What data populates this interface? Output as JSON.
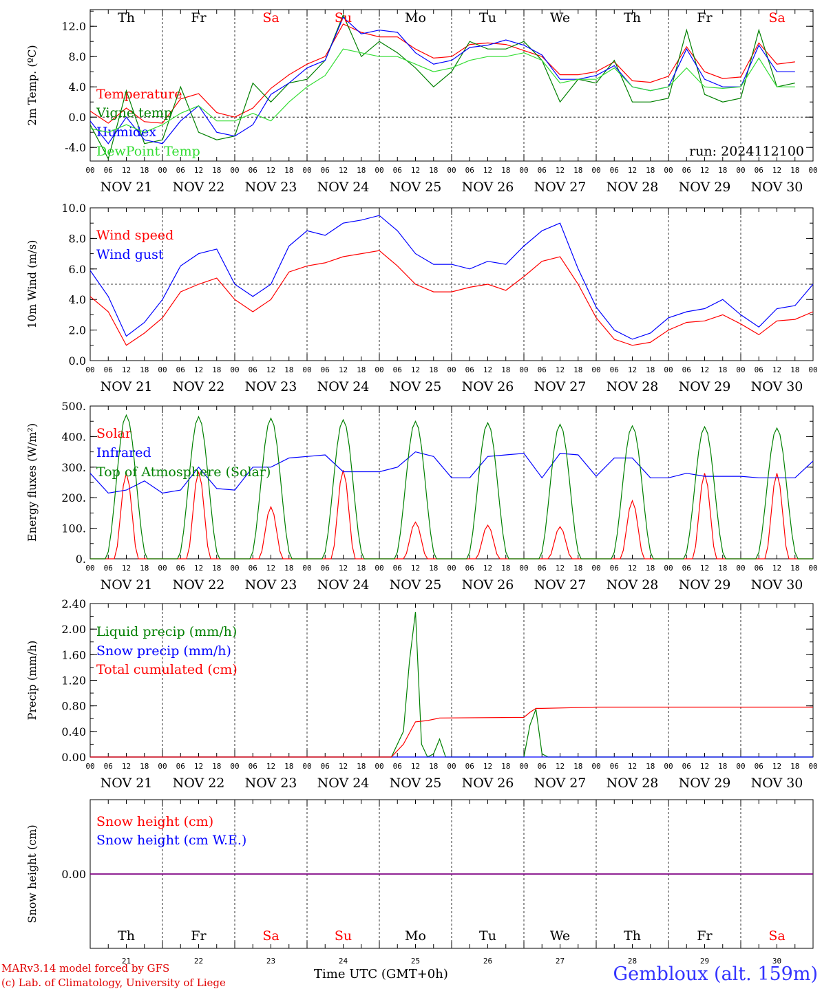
{
  "run_label": "run: 2024112100",
  "days": {
    "names": [
      "Th",
      "Fr",
      "Sa",
      "Su",
      "Mo",
      "Tu",
      "We",
      "Th",
      "Fr",
      "Sa"
    ],
    "weekend": [
      false,
      false,
      true,
      true,
      false,
      false,
      false,
      false,
      false,
      true
    ],
    "dates": [
      "NOV 21",
      "NOV 22",
      "NOV 23",
      "NOV 24",
      "NOV 25",
      "NOV 26",
      "NOV 27",
      "NOV 28",
      "NOV 29",
      "NOV 30"
    ],
    "numbers": [
      "21",
      "22",
      "23",
      "24",
      "25",
      "26",
      "27",
      "28",
      "29",
      "30"
    ]
  },
  "hour_ticks": [
    "00",
    "06",
    "12",
    "18"
  ],
  "footer": {
    "model": "MARv3.14 model forced by GFS",
    "lab": "(c) Lab. of Climatology, University of Liege",
    "xtitle": "Time UTC (GMT+0h)",
    "station": "Gembloux (alt. 159m)"
  },
  "colors": {
    "red": "#ff0000",
    "darkgreen": "#008000",
    "blue": "#0000ff",
    "lightgreen": "#33dd33",
    "purple": "#800080"
  },
  "chart_data": [
    {
      "type": "line",
      "ylabel": "2m Temp. (ºC)",
      "ylim": [
        -5.8,
        14.2
      ],
      "yticks": [
        "12.0",
        "8.0",
        "4.0",
        "0.0",
        "-4.0"
      ],
      "ytick_values": [
        12,
        8,
        4,
        0,
        -4
      ],
      "ref_line": 0,
      "x_unit": "hours since NOV 21 00 UTC",
      "series": [
        {
          "name": "Temperature",
          "color": "#ff0000",
          "x": [
            0,
            6,
            12,
            18,
            24,
            30,
            36,
            42,
            48,
            54,
            60,
            66,
            72,
            78,
            84,
            90,
            96,
            102,
            108,
            114,
            120,
            126,
            132,
            138,
            144,
            150,
            156,
            162,
            168,
            174,
            180,
            186,
            192,
            198,
            204,
            210,
            216,
            222,
            228,
            234
          ],
          "values": [
            0.8,
            -0.8,
            1.2,
            -0.6,
            -0.8,
            2.4,
            3.1,
            0.6,
            0.0,
            1.2,
            3.8,
            5.6,
            7.0,
            8.0,
            12.3,
            11.2,
            10.6,
            10.6,
            9.0,
            7.8,
            8.0,
            9.6,
            9.8,
            9.6,
            8.8,
            8.0,
            5.6,
            5.6,
            6.0,
            7.3,
            4.8,
            4.6,
            5.4,
            9.3,
            6.0,
            5.1,
            5.3,
            9.8,
            7.0,
            7.3
          ]
        },
        {
          "name": "Vigne temp",
          "color": "#008000",
          "x": [
            0,
            6,
            12,
            18,
            24,
            30,
            36,
            42,
            48,
            54,
            60,
            66,
            72,
            78,
            84,
            90,
            96,
            102,
            108,
            114,
            120,
            126,
            132,
            138,
            144,
            150,
            156,
            162,
            168,
            174,
            180,
            186,
            192,
            198,
            204,
            210,
            216,
            222,
            228,
            234
          ],
          "values": [
            -1.0,
            -5.5,
            3.5,
            -3.5,
            -3.0,
            4.0,
            -2.0,
            -3.0,
            -2.5,
            4.5,
            2.0,
            4.5,
            5.0,
            7.5,
            13.5,
            8.0,
            10.0,
            8.5,
            6.5,
            4.0,
            6.0,
            10.0,
            9.0,
            9.0,
            10.0,
            7.5,
            2.0,
            5.0,
            4.5,
            7.5,
            2.0,
            2.0,
            2.5,
            11.5,
            3.0,
            2.0,
            2.5,
            11.5,
            4.0,
            4.5
          ]
        },
        {
          "name": "Humidex",
          "color": "#0000ff",
          "x": [
            0,
            6,
            12,
            18,
            24,
            30,
            36,
            42,
            48,
            54,
            60,
            66,
            72,
            78,
            84,
            90,
            96,
            102,
            108,
            114,
            120,
            126,
            132,
            138,
            144,
            150,
            156,
            162,
            168,
            174,
            180,
            186,
            192,
            198,
            204,
            210,
            216,
            222,
            228,
            234
          ],
          "values": [
            -0.5,
            -3.5,
            0.0,
            -3.0,
            -3.5,
            -0.5,
            1.5,
            -2.0,
            -2.5,
            -1.0,
            3.0,
            4.5,
            6.5,
            7.5,
            13.2,
            11.0,
            11.5,
            11.2,
            8.5,
            7.0,
            7.5,
            9.2,
            9.5,
            10.2,
            9.5,
            8.2,
            5.0,
            5.0,
            5.5,
            6.8,
            4.0,
            3.5,
            4.0,
            9.0,
            5.0,
            4.0,
            4.0,
            9.5,
            6.0,
            6.0
          ]
        },
        {
          "name": "DewPoint Temp",
          "color": "#33dd33",
          "x": [
            0,
            6,
            12,
            18,
            24,
            30,
            36,
            42,
            48,
            54,
            60,
            66,
            72,
            78,
            84,
            90,
            96,
            102,
            108,
            114,
            120,
            126,
            132,
            138,
            144,
            150,
            156,
            162,
            168,
            174,
            180,
            186,
            192,
            198,
            204,
            210,
            216,
            222,
            228,
            234
          ],
          "values": [
            -1.5,
            -2.0,
            -1.0,
            -2.0,
            -1.0,
            0.5,
            1.5,
            -0.5,
            -0.5,
            0.5,
            -0.5,
            2.0,
            4.0,
            5.5,
            9.0,
            8.5,
            8.0,
            8.0,
            7.0,
            6.0,
            6.5,
            7.5,
            8.0,
            8.0,
            8.5,
            7.5,
            4.5,
            5.0,
            5.0,
            6.5,
            4.0,
            3.5,
            4.0,
            6.5,
            4.0,
            3.8,
            4.0,
            7.8,
            4.0,
            4.0
          ]
        }
      ]
    },
    {
      "type": "line",
      "ylabel": "10m Wind (m/s)",
      "ylim": [
        0,
        10
      ],
      "yticks": [
        "10.0",
        "8.0",
        "6.0",
        "4.0",
        "2.0",
        "0.0"
      ],
      "ytick_values": [
        10,
        8,
        6,
        4,
        2,
        0
      ],
      "ref_line": 5,
      "x_unit": "hours since NOV 21 00 UTC",
      "series": [
        {
          "name": "Wind speed",
          "color": "#ff0000",
          "x": [
            0,
            6,
            12,
            18,
            24,
            30,
            36,
            42,
            48,
            54,
            60,
            66,
            72,
            78,
            84,
            90,
            96,
            102,
            108,
            114,
            120,
            126,
            132,
            138,
            144,
            150,
            156,
            162,
            168,
            174,
            180,
            186,
            192,
            198,
            204,
            210,
            216,
            222,
            228,
            234,
            240
          ],
          "values": [
            4.2,
            3.2,
            1.0,
            1.8,
            2.8,
            4.5,
            5.0,
            5.4,
            4.0,
            3.2,
            4.0,
            5.8,
            6.2,
            6.4,
            6.8,
            7.0,
            7.2,
            6.2,
            5.0,
            4.5,
            4.5,
            4.8,
            5.0,
            4.6,
            5.5,
            6.5,
            6.8,
            5.0,
            2.8,
            1.4,
            1.0,
            1.2,
            2.0,
            2.5,
            2.6,
            3.0,
            2.4,
            1.7,
            2.6,
            2.7,
            3.2
          ]
        },
        {
          "name": "Wind gust",
          "color": "#0000ff",
          "x": [
            0,
            6,
            12,
            18,
            24,
            30,
            36,
            42,
            48,
            54,
            60,
            66,
            72,
            78,
            84,
            90,
            96,
            102,
            108,
            114,
            120,
            126,
            132,
            138,
            144,
            150,
            156,
            162,
            168,
            174,
            180,
            186,
            192,
            198,
            204,
            210,
            216,
            222,
            228,
            234,
            240
          ],
          "values": [
            5.9,
            4.2,
            1.6,
            2.5,
            4.0,
            6.2,
            7.0,
            7.3,
            5.0,
            4.2,
            5.0,
            7.5,
            8.5,
            8.2,
            9.0,
            9.2,
            9.5,
            8.5,
            7.0,
            6.3,
            6.3,
            6.0,
            6.5,
            6.3,
            7.5,
            8.5,
            9.0,
            6.0,
            3.5,
            2.0,
            1.4,
            1.8,
            2.8,
            3.2,
            3.4,
            4.0,
            3.0,
            2.2,
            3.4,
            3.6,
            5.0
          ]
        }
      ]
    },
    {
      "type": "line",
      "ylabel": "Energy fluxes (W/m²)",
      "ylim": [
        0,
        500
      ],
      "yticks": [
        "500.",
        "400.",
        "300.",
        "200.",
        "100.",
        "0."
      ],
      "ytick_values": [
        500,
        400,
        300,
        200,
        100,
        0
      ],
      "x_unit": "hours since NOV 21 00 UTC",
      "series": [
        {
          "name": "Solar",
          "color": "#ff0000",
          "peak_hour": 12,
          "daily_peaks": [
            280,
            285,
            170,
            290,
            120,
            110,
            105,
            190,
            280,
            280
          ]
        },
        {
          "name": "Infrared",
          "color": "#0000ff",
          "x": [
            0,
            6,
            12,
            18,
            24,
            30,
            36,
            42,
            48,
            54,
            60,
            66,
            72,
            78,
            84,
            90,
            96,
            102,
            108,
            114,
            120,
            126,
            132,
            138,
            144,
            150,
            156,
            162,
            168,
            174,
            180,
            186,
            192,
            198,
            204,
            210,
            216,
            222,
            228,
            234,
            240
          ],
          "values": [
            280,
            215,
            225,
            255,
            215,
            225,
            300,
            230,
            225,
            300,
            300,
            330,
            335,
            340,
            285,
            285,
            285,
            300,
            350,
            335,
            265,
            265,
            335,
            340,
            345,
            265,
            345,
            340,
            270,
            330,
            330,
            265,
            265,
            280,
            270,
            270,
            270,
            265,
            265,
            265,
            320
          ]
        },
        {
          "name": "Top of Atmosphere (Solar)",
          "color": "#008000",
          "peak_hour": 12,
          "daily_peaks": [
            470,
            465,
            460,
            455,
            450,
            445,
            440,
            435,
            432,
            428
          ]
        }
      ]
    },
    {
      "type": "line",
      "ylabel": "Precip (mm/h)",
      "ylim": [
        0,
        2.4
      ],
      "yticks": [
        "2.40",
        "2.00",
        "1.60",
        "1.20",
        "0.80",
        "0.40",
        "0.00"
      ],
      "ytick_values": [
        2.4,
        2.0,
        1.6,
        1.2,
        0.8,
        0.4,
        0.0
      ],
      "x_unit": "hours since NOV 21 00 UTC",
      "series": [
        {
          "name": "Liquid precip (mm/h)",
          "color": "#008000",
          "x": [
            0,
            96,
            100,
            104,
            106,
            108,
            110,
            112,
            114,
            116,
            118,
            144,
            146,
            148,
            150,
            152,
            240
          ],
          "values": [
            0,
            0,
            0,
            0.4,
            1.5,
            2.27,
            0.2,
            0.0,
            0.05,
            0.28,
            0,
            0,
            0.5,
            0.75,
            0.05,
            0,
            0
          ]
        },
        {
          "name": "Snow precip (mm/h)",
          "color": "#0000ff",
          "x": [
            0,
            240
          ],
          "values": [
            0,
            0
          ]
        },
        {
          "name": "Total cumulated (cm)",
          "color": "#ff0000",
          "x": [
            0,
            100,
            104,
            108,
            112,
            116,
            144,
            146,
            148,
            150,
            168,
            240
          ],
          "values": [
            0,
            0,
            0.2,
            0.55,
            0.57,
            0.61,
            0.62,
            0.7,
            0.76,
            0.76,
            0.78,
            0.78
          ]
        }
      ]
    },
    {
      "type": "line",
      "ylabel": "Snow height (cm)",
      "ylim": [
        -1,
        1
      ],
      "yticks": [
        "0.00"
      ],
      "ytick_values": [
        0
      ],
      "x_unit": "hours since NOV 21 00 UTC",
      "series": [
        {
          "name": "Snow height (cm)",
          "color": "#ff0000",
          "x": [
            0,
            240
          ],
          "values": [
            0,
            0
          ]
        },
        {
          "name": "Snow height (cm W.E.)",
          "color": "#0000ff",
          "x": [
            0,
            240
          ],
          "values": [
            0,
            0
          ]
        }
      ]
    }
  ]
}
